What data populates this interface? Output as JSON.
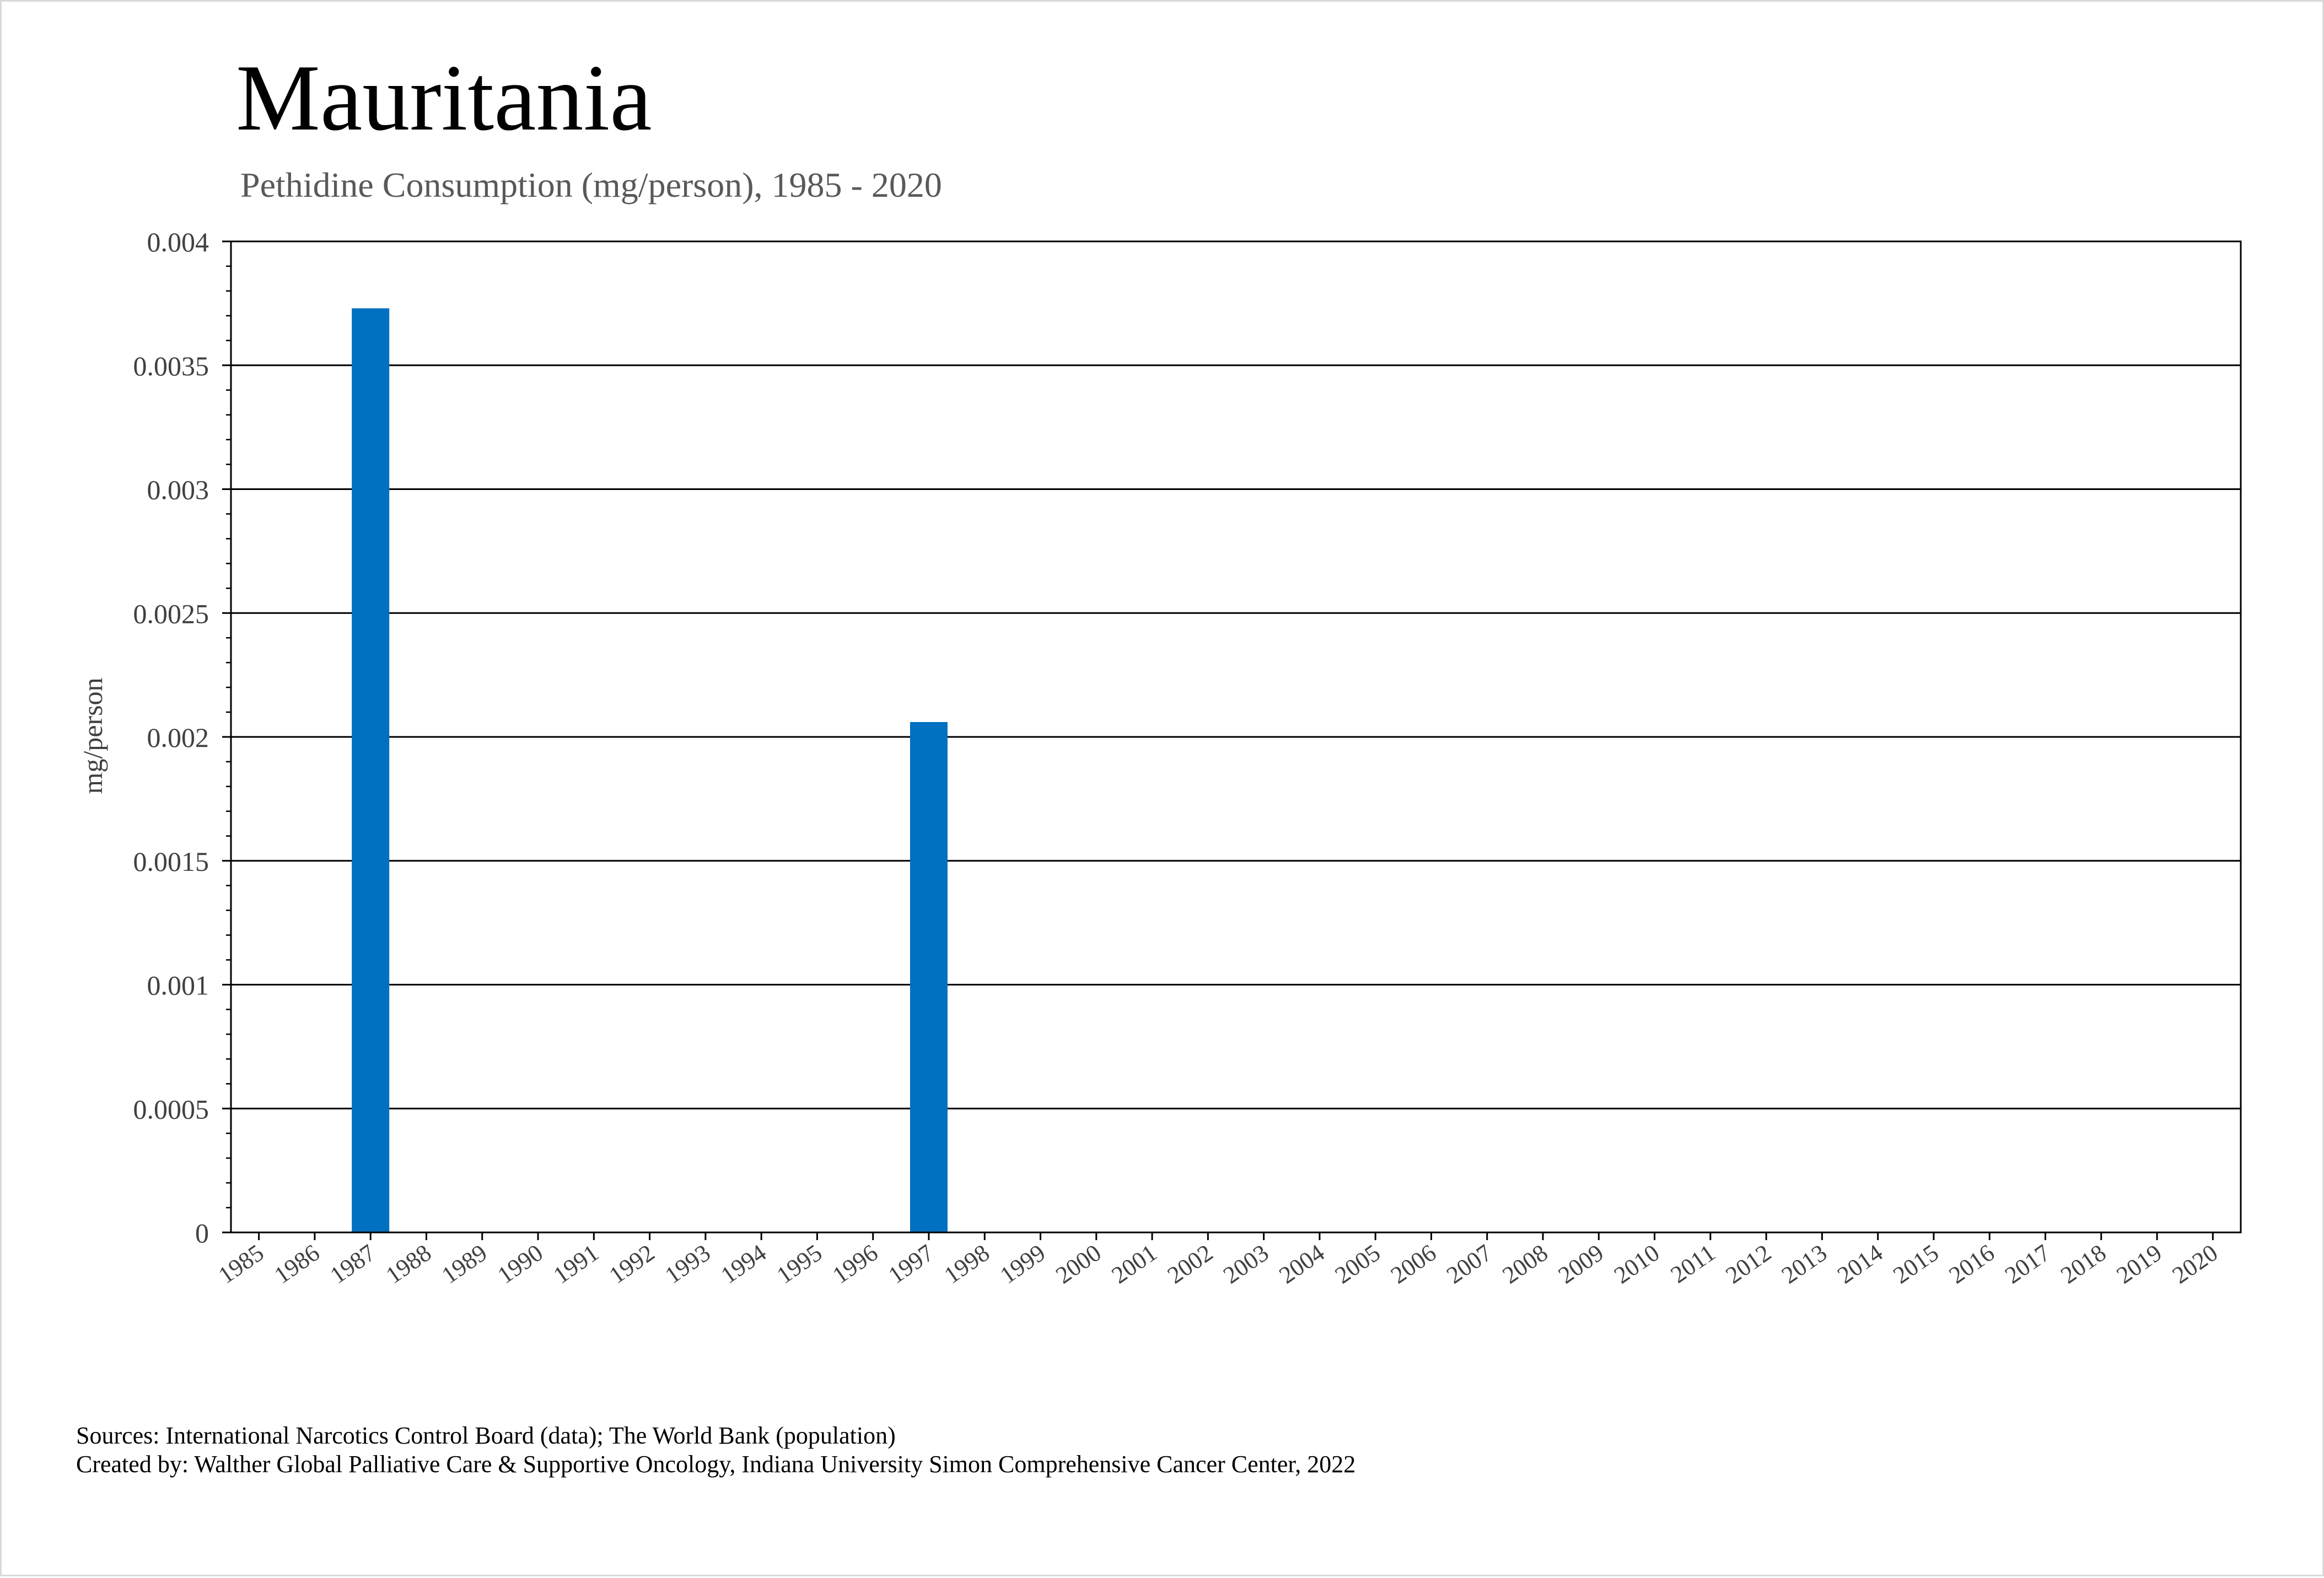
{
  "chart_data": {
    "type": "bar",
    "title": "Mauritania",
    "subtitle": "Pethidine Consumption (mg/person), 1985 - 2020",
    "xlabel": "",
    "ylabel": "mg/person",
    "ylim": [
      0,
      0.004
    ],
    "yticks": [
      "0",
      "0.0005",
      "0.001",
      "0.0015",
      "0.002",
      "0.0025",
      "0.003",
      "0.0035",
      "0.004"
    ],
    "grid": true,
    "legend": "none",
    "bar_color": "#0070C0",
    "categories": [
      "1985",
      "1986",
      "1987",
      "1988",
      "1989",
      "1990",
      "1991",
      "1992",
      "1993",
      "1994",
      "1995",
      "1996",
      "1997",
      "1998",
      "1999",
      "2000",
      "2001",
      "2002",
      "2003",
      "2004",
      "2005",
      "2006",
      "2007",
      "2008",
      "2009",
      "2010",
      "2011",
      "2012",
      "2013",
      "2014",
      "2015",
      "2016",
      "2017",
      "2018",
      "2019",
      "2020"
    ],
    "values": [
      0,
      0,
      0.00373,
      0,
      0,
      0,
      0,
      0,
      0,
      0,
      0,
      0,
      0.00206,
      0,
      0,
      0,
      0,
      0,
      0,
      0,
      0,
      0,
      0,
      0,
      0,
      0,
      0,
      0,
      0,
      0,
      0,
      0,
      0,
      0,
      0,
      0
    ]
  },
  "footer": {
    "sources": "Sources: International Narcotics Control Board (data); The World Bank (population)",
    "created_by": "Created by: Walther Global Palliative Care & Supportive Oncology, Indiana University Simon Comprehensive Cancer Center, 2022"
  }
}
